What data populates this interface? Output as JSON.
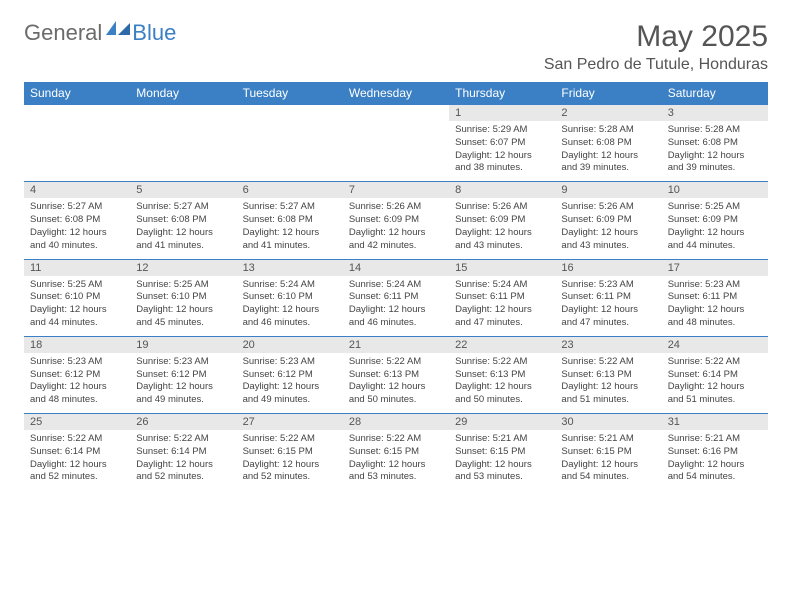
{
  "brand": {
    "part1": "General",
    "part2": "Blue"
  },
  "title": "May 2025",
  "location": "San Pedro de Tutule, Honduras",
  "colors": {
    "header_bg": "#3b7fc4",
    "header_fg": "#ffffff",
    "daynum_bg": "#e8e8e8",
    "text": "#555555",
    "body_text": "#444444",
    "row_border": "#3b7fc4"
  },
  "weekdays": [
    "Sunday",
    "Monday",
    "Tuesday",
    "Wednesday",
    "Thursday",
    "Friday",
    "Saturday"
  ],
  "weeks": [
    [
      null,
      null,
      null,
      null,
      {
        "n": "1",
        "sunrise": "5:29 AM",
        "sunset": "6:07 PM",
        "daylight": "12 hours and 38 minutes."
      },
      {
        "n": "2",
        "sunrise": "5:28 AM",
        "sunset": "6:08 PM",
        "daylight": "12 hours and 39 minutes."
      },
      {
        "n": "3",
        "sunrise": "5:28 AM",
        "sunset": "6:08 PM",
        "daylight": "12 hours and 39 minutes."
      }
    ],
    [
      {
        "n": "4",
        "sunrise": "5:27 AM",
        "sunset": "6:08 PM",
        "daylight": "12 hours and 40 minutes."
      },
      {
        "n": "5",
        "sunrise": "5:27 AM",
        "sunset": "6:08 PM",
        "daylight": "12 hours and 41 minutes."
      },
      {
        "n": "6",
        "sunrise": "5:27 AM",
        "sunset": "6:08 PM",
        "daylight": "12 hours and 41 minutes."
      },
      {
        "n": "7",
        "sunrise": "5:26 AM",
        "sunset": "6:09 PM",
        "daylight": "12 hours and 42 minutes."
      },
      {
        "n": "8",
        "sunrise": "5:26 AM",
        "sunset": "6:09 PM",
        "daylight": "12 hours and 43 minutes."
      },
      {
        "n": "9",
        "sunrise": "5:26 AM",
        "sunset": "6:09 PM",
        "daylight": "12 hours and 43 minutes."
      },
      {
        "n": "10",
        "sunrise": "5:25 AM",
        "sunset": "6:09 PM",
        "daylight": "12 hours and 44 minutes."
      }
    ],
    [
      {
        "n": "11",
        "sunrise": "5:25 AM",
        "sunset": "6:10 PM",
        "daylight": "12 hours and 44 minutes."
      },
      {
        "n": "12",
        "sunrise": "5:25 AM",
        "sunset": "6:10 PM",
        "daylight": "12 hours and 45 minutes."
      },
      {
        "n": "13",
        "sunrise": "5:24 AM",
        "sunset": "6:10 PM",
        "daylight": "12 hours and 46 minutes."
      },
      {
        "n": "14",
        "sunrise": "5:24 AM",
        "sunset": "6:11 PM",
        "daylight": "12 hours and 46 minutes."
      },
      {
        "n": "15",
        "sunrise": "5:24 AM",
        "sunset": "6:11 PM",
        "daylight": "12 hours and 47 minutes."
      },
      {
        "n": "16",
        "sunrise": "5:23 AM",
        "sunset": "6:11 PM",
        "daylight": "12 hours and 47 minutes."
      },
      {
        "n": "17",
        "sunrise": "5:23 AM",
        "sunset": "6:11 PM",
        "daylight": "12 hours and 48 minutes."
      }
    ],
    [
      {
        "n": "18",
        "sunrise": "5:23 AM",
        "sunset": "6:12 PM",
        "daylight": "12 hours and 48 minutes."
      },
      {
        "n": "19",
        "sunrise": "5:23 AM",
        "sunset": "6:12 PM",
        "daylight": "12 hours and 49 minutes."
      },
      {
        "n": "20",
        "sunrise": "5:23 AM",
        "sunset": "6:12 PM",
        "daylight": "12 hours and 49 minutes."
      },
      {
        "n": "21",
        "sunrise": "5:22 AM",
        "sunset": "6:13 PM",
        "daylight": "12 hours and 50 minutes."
      },
      {
        "n": "22",
        "sunrise": "5:22 AM",
        "sunset": "6:13 PM",
        "daylight": "12 hours and 50 minutes."
      },
      {
        "n": "23",
        "sunrise": "5:22 AM",
        "sunset": "6:13 PM",
        "daylight": "12 hours and 51 minutes."
      },
      {
        "n": "24",
        "sunrise": "5:22 AM",
        "sunset": "6:14 PM",
        "daylight": "12 hours and 51 minutes."
      }
    ],
    [
      {
        "n": "25",
        "sunrise": "5:22 AM",
        "sunset": "6:14 PM",
        "daylight": "12 hours and 52 minutes."
      },
      {
        "n": "26",
        "sunrise": "5:22 AM",
        "sunset": "6:14 PM",
        "daylight": "12 hours and 52 minutes."
      },
      {
        "n": "27",
        "sunrise": "5:22 AM",
        "sunset": "6:15 PM",
        "daylight": "12 hours and 52 minutes."
      },
      {
        "n": "28",
        "sunrise": "5:22 AM",
        "sunset": "6:15 PM",
        "daylight": "12 hours and 53 minutes."
      },
      {
        "n": "29",
        "sunrise": "5:21 AM",
        "sunset": "6:15 PM",
        "daylight": "12 hours and 53 minutes."
      },
      {
        "n": "30",
        "sunrise": "5:21 AM",
        "sunset": "6:15 PM",
        "daylight": "12 hours and 54 minutes."
      },
      {
        "n": "31",
        "sunrise": "5:21 AM",
        "sunset": "6:16 PM",
        "daylight": "12 hours and 54 minutes."
      }
    ]
  ],
  "labels": {
    "sunrise": "Sunrise:",
    "sunset": "Sunset:",
    "daylight": "Daylight:"
  }
}
